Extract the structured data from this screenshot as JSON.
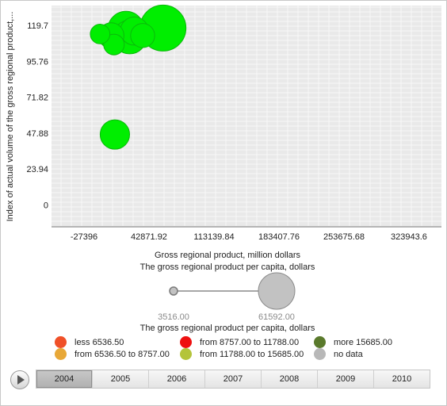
{
  "chart_data": {
    "type": "scatter",
    "subtype": "bubble",
    "xlabel": "Gross regional product, million dollars",
    "ylabel": "Index of actual volume of the gross regional product,...",
    "size_label": "The gross regional product per capita, dollars",
    "color_label": "The gross regional product per capita, dollars",
    "x_ticks": [
      "-27396",
      "42871.92",
      "113139.84",
      "183407.76",
      "253675.68",
      "323943.6"
    ],
    "y_ticks": [
      "0",
      "23.94",
      "47.88",
      "71.82",
      "95.76",
      "119.7"
    ],
    "xlim": [
      -62530,
      359077
    ],
    "ylim": [
      -14,
      133
    ],
    "size_range": {
      "min": 3516,
      "max": 61592,
      "min_label": "3516.00",
      "max_label": "61592.00"
    },
    "grid": true,
    "points": [
      {
        "x": 6000,
        "y": 47,
        "size": 22000,
        "color": "#00ee00"
      },
      {
        "x": -10000,
        "y": 114,
        "size": 9000,
        "color": "#00ee00"
      },
      {
        "x": 2000,
        "y": 113,
        "size": 16000,
        "color": "#00ee00"
      },
      {
        "x": 5000,
        "y": 107,
        "size": 10000,
        "color": "#00ee00"
      },
      {
        "x": 18000,
        "y": 117,
        "size": 36000,
        "color": "#00ee00"
      },
      {
        "x": 22000,
        "y": 112,
        "size": 30000,
        "color": "#00ee00"
      },
      {
        "x": 27000,
        "y": 116,
        "size": 20000,
        "color": "#00ee00"
      },
      {
        "x": 36000,
        "y": 113,
        "size": 14000,
        "color": "#00ee00"
      },
      {
        "x": 58000,
        "y": 118,
        "size": 61592,
        "color": "#00ee00"
      }
    ],
    "legend": [
      {
        "label": "less 6536.50",
        "color": "#f05028"
      },
      {
        "label": "from 6536.50 to 8757.00",
        "color": "#e8a838"
      },
      {
        "label": "from 8757.00 to 11788.00",
        "color": "#ee1010"
      },
      {
        "label": "from 11788.00 to 15685.00",
        "color": "#b4c43a"
      },
      {
        "label": "more 15685.00",
        "color": "#5a7a2c"
      },
      {
        "label": "no data",
        "color": "#b8b8b8"
      }
    ]
  },
  "timeline": {
    "years": [
      "2004",
      "2005",
      "2006",
      "2007",
      "2008",
      "2009",
      "2010"
    ],
    "selected": "2004"
  }
}
